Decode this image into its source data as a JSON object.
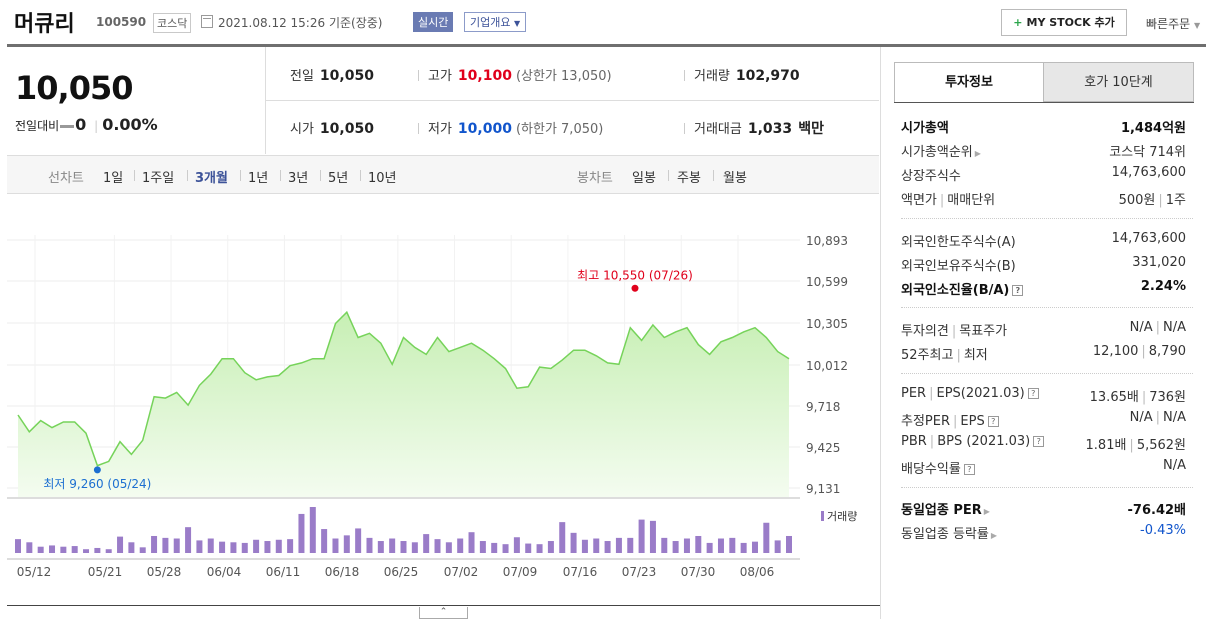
{
  "header": {
    "stock_name": "머큐리",
    "code": "100590",
    "market": "코스닥",
    "datetime": "2021.08.12 15:26",
    "basis": "기준(장중)",
    "realtime_badge": "실시간",
    "company_info": "기업개요",
    "mystock_button": "MY STOCK 추가",
    "quick_order": "빠른주문"
  },
  "price": {
    "current": "10,050",
    "change_label": "전일대비",
    "change_value": "0",
    "change_pct": "0.00%",
    "prev_close_label": "전일",
    "prev_close": "10,050",
    "high_label": "고가",
    "high": "10,100",
    "upper_limit": "(상한가 13,050)",
    "volume_label": "거래량",
    "volume": "102,970",
    "open_label": "시가",
    "open": "10,050",
    "low_label": "저가",
    "low": "10,000",
    "lower_limit": "(하한가 7,050)",
    "trade_value_label": "거래대금",
    "trade_value": "1,033",
    "trade_value_unit": "백만"
  },
  "ranges": {
    "line_label": "선차트",
    "line_options": [
      "1일",
      "1주일",
      "3개월",
      "1년",
      "3년",
      "5년",
      "10년"
    ],
    "selected": "3개월",
    "candle_label": "봉차트",
    "candle_options": [
      "일봉",
      "주봉",
      "월봉"
    ]
  },
  "chart_data": {
    "type": "area",
    "x_tick_labels": [
      "05/12",
      "05/21",
      "05/28",
      "06/04",
      "06/11",
      "06/18",
      "06/25",
      "07/02",
      "07/09",
      "07/16",
      "07/23",
      "07/30",
      "08/06"
    ],
    "y_tick_labels": [
      "10,893",
      "10,599",
      "10,305",
      "10,012",
      "9,718",
      "9,425",
      "9,131"
    ],
    "ylim": [
      9131,
      10893
    ],
    "price_series": [
      9650,
      9530,
      9610,
      9560,
      9600,
      9600,
      9520,
      9290,
      9320,
      9460,
      9370,
      9470,
      9780,
      9770,
      9810,
      9720,
      9860,
      9940,
      10050,
      10050,
      9950,
      9900,
      9920,
      9930,
      10000,
      10020,
      10050,
      10050,
      10300,
      10380,
      10200,
      10230,
      10160,
      10010,
      10200,
      10130,
      10080,
      10200,
      10100,
      10130,
      10160,
      10110,
      10050,
      9980,
      9840,
      9850,
      9990,
      9980,
      10040,
      10110,
      10110,
      10070,
      10020,
      10010,
      10270,
      10180,
      10290,
      10200,
      10240,
      10270,
      10150,
      10080,
      10170,
      10200,
      10240,
      10270,
      10200,
      10100,
      10050
    ],
    "volume_series": [
      22,
      17,
      10,
      12,
      10,
      11,
      6,
      8,
      6,
      26,
      17,
      9,
      27,
      24,
      23,
      41,
      20,
      23,
      18,
      17,
      16,
      21,
      19,
      21,
      22,
      62,
      73,
      38,
      23,
      28,
      39,
      24,
      19,
      23,
      19,
      17,
      30,
      22,
      17,
      23,
      33,
      19,
      16,
      14,
      25,
      15,
      14,
      19,
      49,
      32,
      21,
      23,
      19,
      24,
      24,
      53,
      51,
      24,
      19,
      23,
      27,
      16,
      23,
      24,
      16,
      18,
      48,
      20,
      27
    ],
    "high_annotation": "최고 10,550 (07/26)",
    "low_annotation": "최저 9,260 (05/24)",
    "volume_legend": "거래량",
    "colors": {
      "line": "#76d35a",
      "fill_top": "#c7efb4",
      "fill_bottom": "#f4fcf0",
      "volume": "#9a7cc8",
      "high": "#e0001b",
      "low": "#1c6fd1"
    }
  },
  "tabs": {
    "active": "투자정보",
    "other": "호가 10단계"
  },
  "info": {
    "market_cap_label": "시가총액",
    "market_cap": "1,484억원",
    "cap_rank_label": "시가총액순위",
    "cap_rank": "코스닥 714위",
    "shares_label": "상장주식수",
    "shares": "14,763,600",
    "par_label": "액면가",
    "lot_label": "매매단위",
    "par": "500원",
    "lot": "1주",
    "foreign_limit_label": "외국인한도주식수(A)",
    "foreign_limit": "14,763,600",
    "foreign_hold_label": "외국인보유주식수(B)",
    "foreign_hold": "331,020",
    "foreign_ratio_label": "외국인소진율(B/A)",
    "foreign_ratio": "2.24%",
    "opinion_label": "투자의견",
    "target_label": "목표주가",
    "opinion": "N/A",
    "target": "N/A",
    "w52_high_label": "52주최고",
    "w52_low_label": "최저",
    "w52_high": "12,100",
    "w52_low": "8,790",
    "per_label": "PER",
    "eps_label": "EPS(2021.03)",
    "per": "13.65배",
    "eps": "736원",
    "est_per_label": "추정PER",
    "est_eps_label": "EPS",
    "est_per": "N/A",
    "est_eps": "N/A",
    "pbr_label": "PBR",
    "bps_label": "BPS (2021.03)",
    "pbr": "1.81배",
    "bps": "5,562원",
    "div_label": "배당수익률",
    "div": "N/A",
    "sector_per_label": "동일업종 PER",
    "sector_per": "-76.42배",
    "sector_chg_label": "동일업종 등락률",
    "sector_chg": "-0.43%"
  }
}
